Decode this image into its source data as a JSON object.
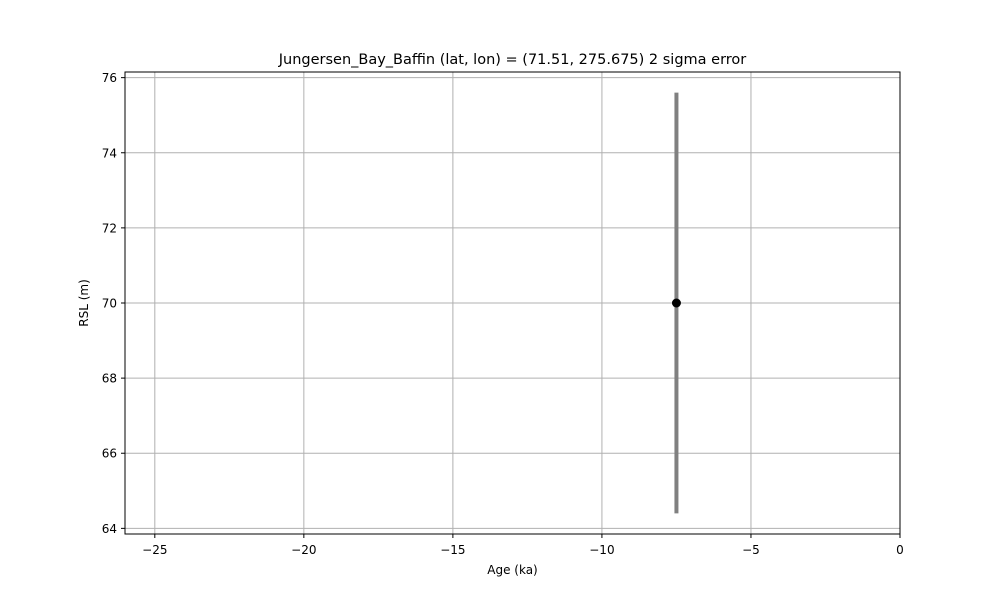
{
  "chart_data": {
    "type": "scatter",
    "title": "Jungersen_Bay_Baffin (lat, lon) = (71.51, 275.675)  2 sigma error",
    "xlabel": "Age (ka)",
    "ylabel": "RSL (m)",
    "xlim": [
      -26,
      0
    ],
    "ylim": [
      63.85,
      76.15
    ],
    "xticks": [
      -25,
      -20,
      -15,
      -10,
      -5,
      0
    ],
    "xtick_labels": [
      "−25",
      "−20",
      "−15",
      "−10",
      "−5",
      "0"
    ],
    "yticks": [
      64,
      66,
      68,
      70,
      72,
      74,
      76
    ],
    "ytick_labels": [
      "64",
      "66",
      "68",
      "70",
      "72",
      "74",
      "76"
    ],
    "grid": true,
    "points": [
      {
        "x": -7.5,
        "y": 70.0,
        "y_low": 64.4,
        "y_high": 75.6
      }
    ],
    "colors": {
      "point": "#000000",
      "errorbar": "#808080",
      "grid": "#b0b0b0"
    }
  }
}
